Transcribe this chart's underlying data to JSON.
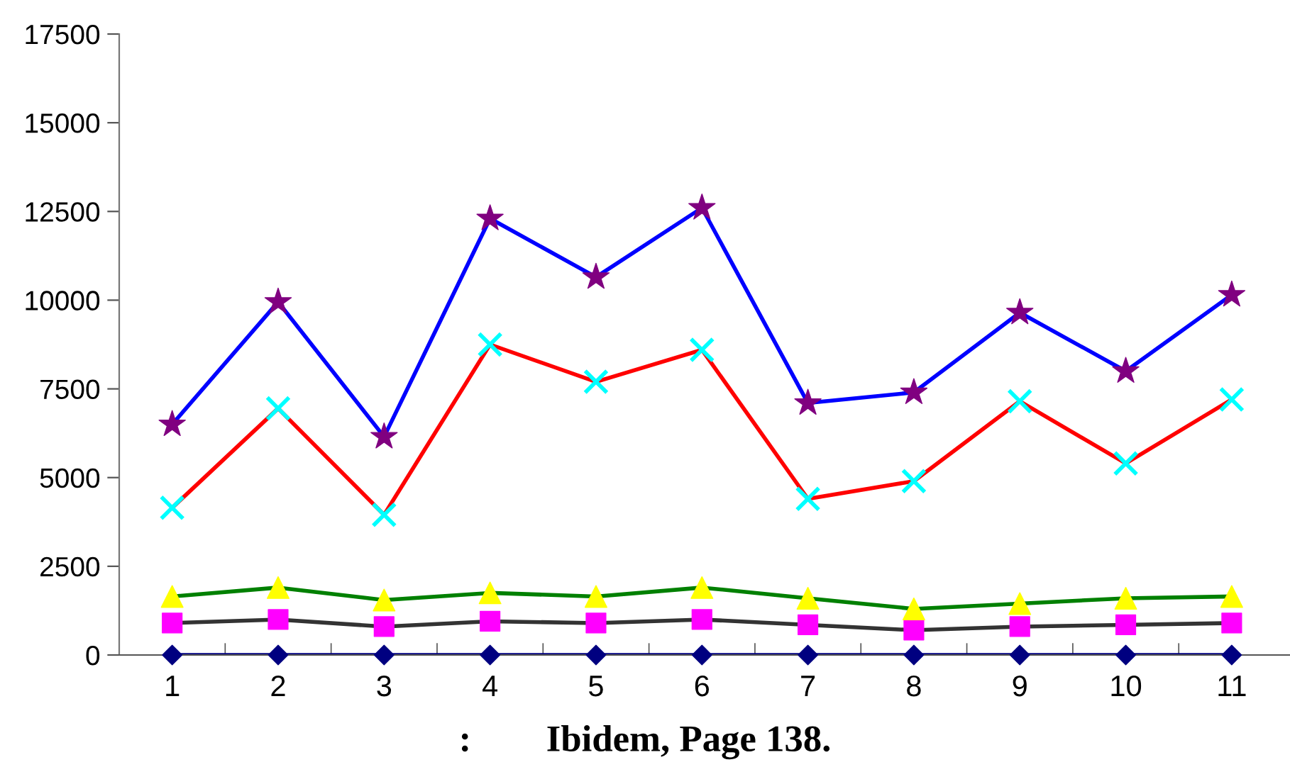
{
  "chart_data": {
    "type": "line",
    "categories": [
      "1",
      "2",
      "3",
      "4",
      "5",
      "6",
      "7",
      "8",
      "9",
      "10",
      "11"
    ],
    "series": [
      {
        "color": "#000080",
        "marker": "diamond",
        "colors": [
          "#000080",
          "#000080",
          "#000080",
          "#000080",
          "#000080",
          "#000080",
          "#000080",
          "#000080",
          "#000080",
          "#000080",
          "#000080"
        ],
        "values": [
          0,
          0,
          0,
          0,
          0,
          0,
          0,
          0,
          0,
          0,
          0
        ]
      },
      {
        "color": "#333333",
        "marker": "square",
        "colors": [
          "#ff00ff",
          "#ff00ff",
          "#ff00ff",
          "#ff00ff",
          "#ff00ff",
          "#ff00ff",
          "#ff00ff",
          "#ff00ff",
          "#ff00ff",
          "#ff00ff",
          "#ff00ff"
        ],
        "values": [
          900,
          1000,
          800,
          950,
          900,
          1000,
          850,
          700,
          800,
          850,
          900
        ]
      },
      {
        "color": "#008000",
        "marker": "triangle",
        "colors": [
          "#ffff00",
          "#ffff00",
          "#ffff00",
          "#ffff00",
          "#ffff00",
          "#ffff00",
          "#ffff00",
          "#ffff00",
          "#ffff00",
          "#ffff00",
          "#ffff00"
        ],
        "values": [
          1650,
          1900,
          1550,
          1750,
          1650,
          1900,
          1600,
          1300,
          1450,
          1600,
          1650
        ]
      },
      {
        "color": "#ff0000",
        "marker": "cross",
        "colors": [
          "#00ffff",
          "#00ffff",
          "#00ffff",
          "#00ffff",
          "#00ffff",
          "#00ffff",
          "#00ffff",
          "#00ffff",
          "#00ffff",
          "#00ffff",
          "#00ffff"
        ],
        "values": [
          4150,
          6950,
          3950,
          8750,
          7700,
          8600,
          4400,
          4900,
          7150,
          5400,
          7200
        ]
      },
      {
        "color": "#0000ff",
        "marker": "star",
        "colors": [
          "#800080",
          "#800080",
          "#800080",
          "#800080",
          "#800080",
          "#800080",
          "#800080",
          "#800080",
          "#800080",
          "#800080",
          "#800080"
        ],
        "values": [
          6500,
          9950,
          6150,
          12300,
          10650,
          12600,
          7100,
          7400,
          9650,
          8000,
          10150
        ]
      }
    ],
    "ylim": [
      0,
      17500
    ],
    "yticks": [
      0,
      2500,
      5000,
      7500,
      10000,
      12500,
      15000,
      17500
    ],
    "grid": false,
    "annotations": [
      ":        Ibidem, Page 138."
    ]
  }
}
